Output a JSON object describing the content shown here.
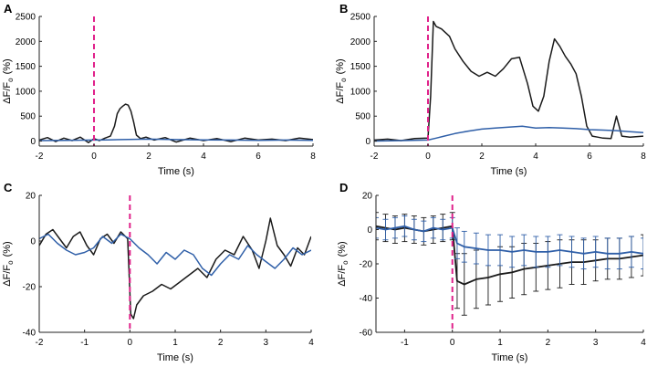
{
  "colors": {
    "black": "#1a1a1a",
    "blue": "#2f5fa8",
    "stim": "#e0218a",
    "axis": "#222222"
  },
  "chart_data": [
    {
      "panel": "A",
      "type": "line",
      "xlabel": "Time (s)",
      "ylabel_main": "ΔF/F",
      "ylabel_sub": "o",
      "ylabel_unit": "(%)",
      "xlim": [
        -2,
        8
      ],
      "ylim": [
        -100,
        2500
      ],
      "xticks": [
        -2,
        0,
        2,
        4,
        6,
        8
      ],
      "yticks": [
        0,
        500,
        1000,
        1500,
        2000,
        2500
      ],
      "stim_x": 0,
      "series": [
        {
          "color": "black",
          "x": [
            -2,
            -1.7,
            -1.4,
            -1.1,
            -0.8,
            -0.5,
            -0.2,
            0,
            0.2,
            0.4,
            0.6,
            0.75,
            0.85,
            0.95,
            1.05,
            1.15,
            1.25,
            1.35,
            1.45,
            1.55,
            1.7,
            1.9,
            2.2,
            2.6,
            3,
            3.5,
            4,
            4.5,
            5,
            5.5,
            6,
            6.5,
            7,
            7.5,
            8
          ],
          "y": [
            20,
            70,
            -10,
            60,
            10,
            80,
            -30,
            50,
            10,
            60,
            100,
            300,
            550,
            650,
            700,
            740,
            720,
            600,
            380,
            120,
            50,
            80,
            20,
            70,
            -20,
            60,
            10,
            50,
            -10,
            60,
            20,
            40,
            10,
            60,
            30
          ]
        },
        {
          "color": "blue",
          "x": [
            -2,
            -1,
            0,
            0.5,
            1,
            1.5,
            2,
            3,
            4,
            5,
            6,
            7,
            8
          ],
          "y": [
            10,
            15,
            20,
            25,
            30,
            35,
            40,
            30,
            25,
            20,
            15,
            20,
            15
          ]
        }
      ]
    },
    {
      "panel": "B",
      "type": "line",
      "xlabel": "Time (s)",
      "ylabel_main": "ΔF/F",
      "ylabel_sub": "o",
      "ylabel_unit": "(%)",
      "xlim": [
        -2,
        8
      ],
      "ylim": [
        -100,
        2500
      ],
      "xticks": [
        -2,
        0,
        2,
        4,
        6,
        8
      ],
      "yticks": [
        0,
        500,
        1000,
        1500,
        2000,
        2500
      ],
      "stim_x": 0,
      "series": [
        {
          "color": "black",
          "x": [
            -2,
            -1.5,
            -1,
            -0.5,
            0,
            0.1,
            0.2,
            0.3,
            0.5,
            0.8,
            1,
            1.3,
            1.6,
            1.9,
            2.2,
            2.5,
            2.8,
            3.1,
            3.4,
            3.7,
            3.9,
            4.1,
            4.3,
            4.5,
            4.7,
            4.9,
            5.1,
            5.3,
            5.5,
            5.7,
            5.9,
            6.1,
            6.3,
            6.5,
            6.8,
            7,
            7.2,
            7.5,
            8
          ],
          "y": [
            20,
            40,
            10,
            50,
            60,
            900,
            2400,
            2300,
            2250,
            2100,
            1850,
            1600,
            1400,
            1300,
            1380,
            1300,
            1450,
            1650,
            1680,
            1150,
            700,
            600,
            900,
            1600,
            2050,
            1900,
            1700,
            1550,
            1350,
            900,
            300,
            100,
            80,
            60,
            50,
            500,
            100,
            80,
            100
          ]
        },
        {
          "color": "blue",
          "x": [
            -2,
            -1,
            0,
            0.3,
            0.6,
            1,
            1.5,
            2,
            2.5,
            3,
            3.5,
            4,
            4.5,
            5,
            5.5,
            6,
            6.5,
            7,
            7.5,
            8
          ],
          "y": [
            0,
            10,
            20,
            60,
            100,
            150,
            200,
            240,
            260,
            280,
            300,
            260,
            270,
            260,
            250,
            230,
            220,
            210,
            190,
            170
          ]
        }
      ]
    },
    {
      "panel": "C",
      "type": "line",
      "xlabel": "Time (s)",
      "ylabel_main": "ΔF/F",
      "ylabel_sub": "o",
      "ylabel_unit": "(%)",
      "xlim": [
        -2,
        4
      ],
      "ylim": [
        -40,
        20
      ],
      "xticks": [
        -2,
        -1,
        0,
        1,
        2,
        3,
        4
      ],
      "yticks": [
        -40,
        -20,
        0,
        20
      ],
      "stim_x": 0,
      "series": [
        {
          "color": "black",
          "x": [
            -2,
            -1.85,
            -1.7,
            -1.55,
            -1.4,
            -1.25,
            -1.1,
            -0.95,
            -0.8,
            -0.65,
            -0.5,
            -0.35,
            -0.2,
            -0.05,
            0.02,
            0.08,
            0.15,
            0.3,
            0.5,
            0.7,
            0.9,
            1.1,
            1.3,
            1.5,
            1.7,
            1.9,
            2.1,
            2.3,
            2.5,
            2.7,
            2.85,
            3.0,
            3.1,
            3.25,
            3.4,
            3.55,
            3.7,
            3.85,
            4.0
          ],
          "y": [
            -2,
            3,
            5,
            1,
            -3,
            2,
            4,
            -2,
            -6,
            1,
            3,
            -1,
            4,
            1,
            -32,
            -34,
            -28,
            -24,
            -22,
            -19,
            -21,
            -18,
            -15,
            -12,
            -16,
            -8,
            -4,
            -6,
            2,
            -4,
            -12,
            0,
            10,
            -2,
            -6,
            -11,
            -3,
            -6,
            2
          ]
        },
        {
          "color": "blue",
          "x": [
            -2,
            -1.8,
            -1.6,
            -1.4,
            -1.2,
            -1.0,
            -0.8,
            -0.6,
            -0.4,
            -0.2,
            0,
            0.2,
            0.4,
            0.6,
            0.8,
            1.0,
            1.2,
            1.4,
            1.6,
            1.8,
            2.0,
            2.2,
            2.4,
            2.6,
            2.8,
            3.0,
            3.2,
            3.4,
            3.6,
            3.8,
            4.0
          ],
          "y": [
            1,
            3,
            -1,
            -4,
            -6,
            -5,
            -3,
            2,
            -1,
            3,
            1,
            -3,
            -6,
            -10,
            -5,
            -8,
            -4,
            -6,
            -12,
            -15,
            -10,
            -6,
            -8,
            -2,
            -6,
            -9,
            -12,
            -8,
            -3,
            -6,
            -4
          ]
        }
      ]
    },
    {
      "panel": "D",
      "type": "line",
      "xlabel": "Time (s)",
      "ylabel_main": "ΔF/F",
      "ylabel_sub": "o",
      "ylabel_unit": "(%)",
      "xlim": [
        -1.6,
        4
      ],
      "ylim": [
        -60,
        20
      ],
      "xticks": [
        -1,
        0,
        1,
        2,
        3,
        4
      ],
      "yticks": [
        -60,
        -40,
        -20,
        0,
        20
      ],
      "stim_x": 0,
      "series": [
        {
          "color": "black",
          "x": [
            -1.6,
            -1.4,
            -1.2,
            -1.0,
            -0.8,
            -0.6,
            -0.4,
            -0.2,
            0,
            0.1,
            0.25,
            0.5,
            0.75,
            1.0,
            1.25,
            1.5,
            1.75,
            2.0,
            2.25,
            2.5,
            2.75,
            3.0,
            3.25,
            3.5,
            3.75,
            4.0
          ],
          "y": [
            2,
            1,
            0,
            1,
            0,
            -1,
            0,
            1,
            2,
            -30,
            -32,
            -29,
            -28,
            -26,
            -25,
            -23,
            -22,
            -21,
            -20,
            -19,
            -19,
            -18,
            -17,
            -17,
            -16,
            -15
          ],
          "err": [
            8,
            8,
            8,
            8,
            8,
            8,
            8,
            8,
            8,
            16,
            18,
            17,
            16,
            16,
            15,
            15,
            14,
            14,
            14,
            13,
            13,
            12,
            12,
            12,
            12,
            12
          ]
        },
        {
          "color": "blue",
          "x": [
            -1.6,
            -1.4,
            -1.2,
            -1.0,
            -0.8,
            -0.6,
            -0.4,
            -0.2,
            0,
            0.1,
            0.25,
            0.5,
            0.75,
            1.0,
            1.25,
            1.5,
            1.75,
            2.0,
            2.25,
            2.5,
            2.75,
            3.0,
            3.25,
            3.5,
            3.75,
            4.0
          ],
          "y": [
            1,
            0,
            1,
            2,
            0,
            -1,
            1,
            0,
            1,
            -8,
            -10,
            -11,
            -12,
            -12,
            -13,
            -12,
            -13,
            -13,
            -12,
            -13,
            -14,
            -13,
            -14,
            -14,
            -13,
            -14
          ],
          "err": [
            6,
            6,
            6,
            6,
            6,
            6,
            6,
            6,
            6,
            9,
            9,
            9,
            9,
            9,
            9,
            9,
            9,
            9,
            9,
            9,
            9,
            9,
            9,
            9,
            9,
            9
          ]
        }
      ]
    }
  ]
}
